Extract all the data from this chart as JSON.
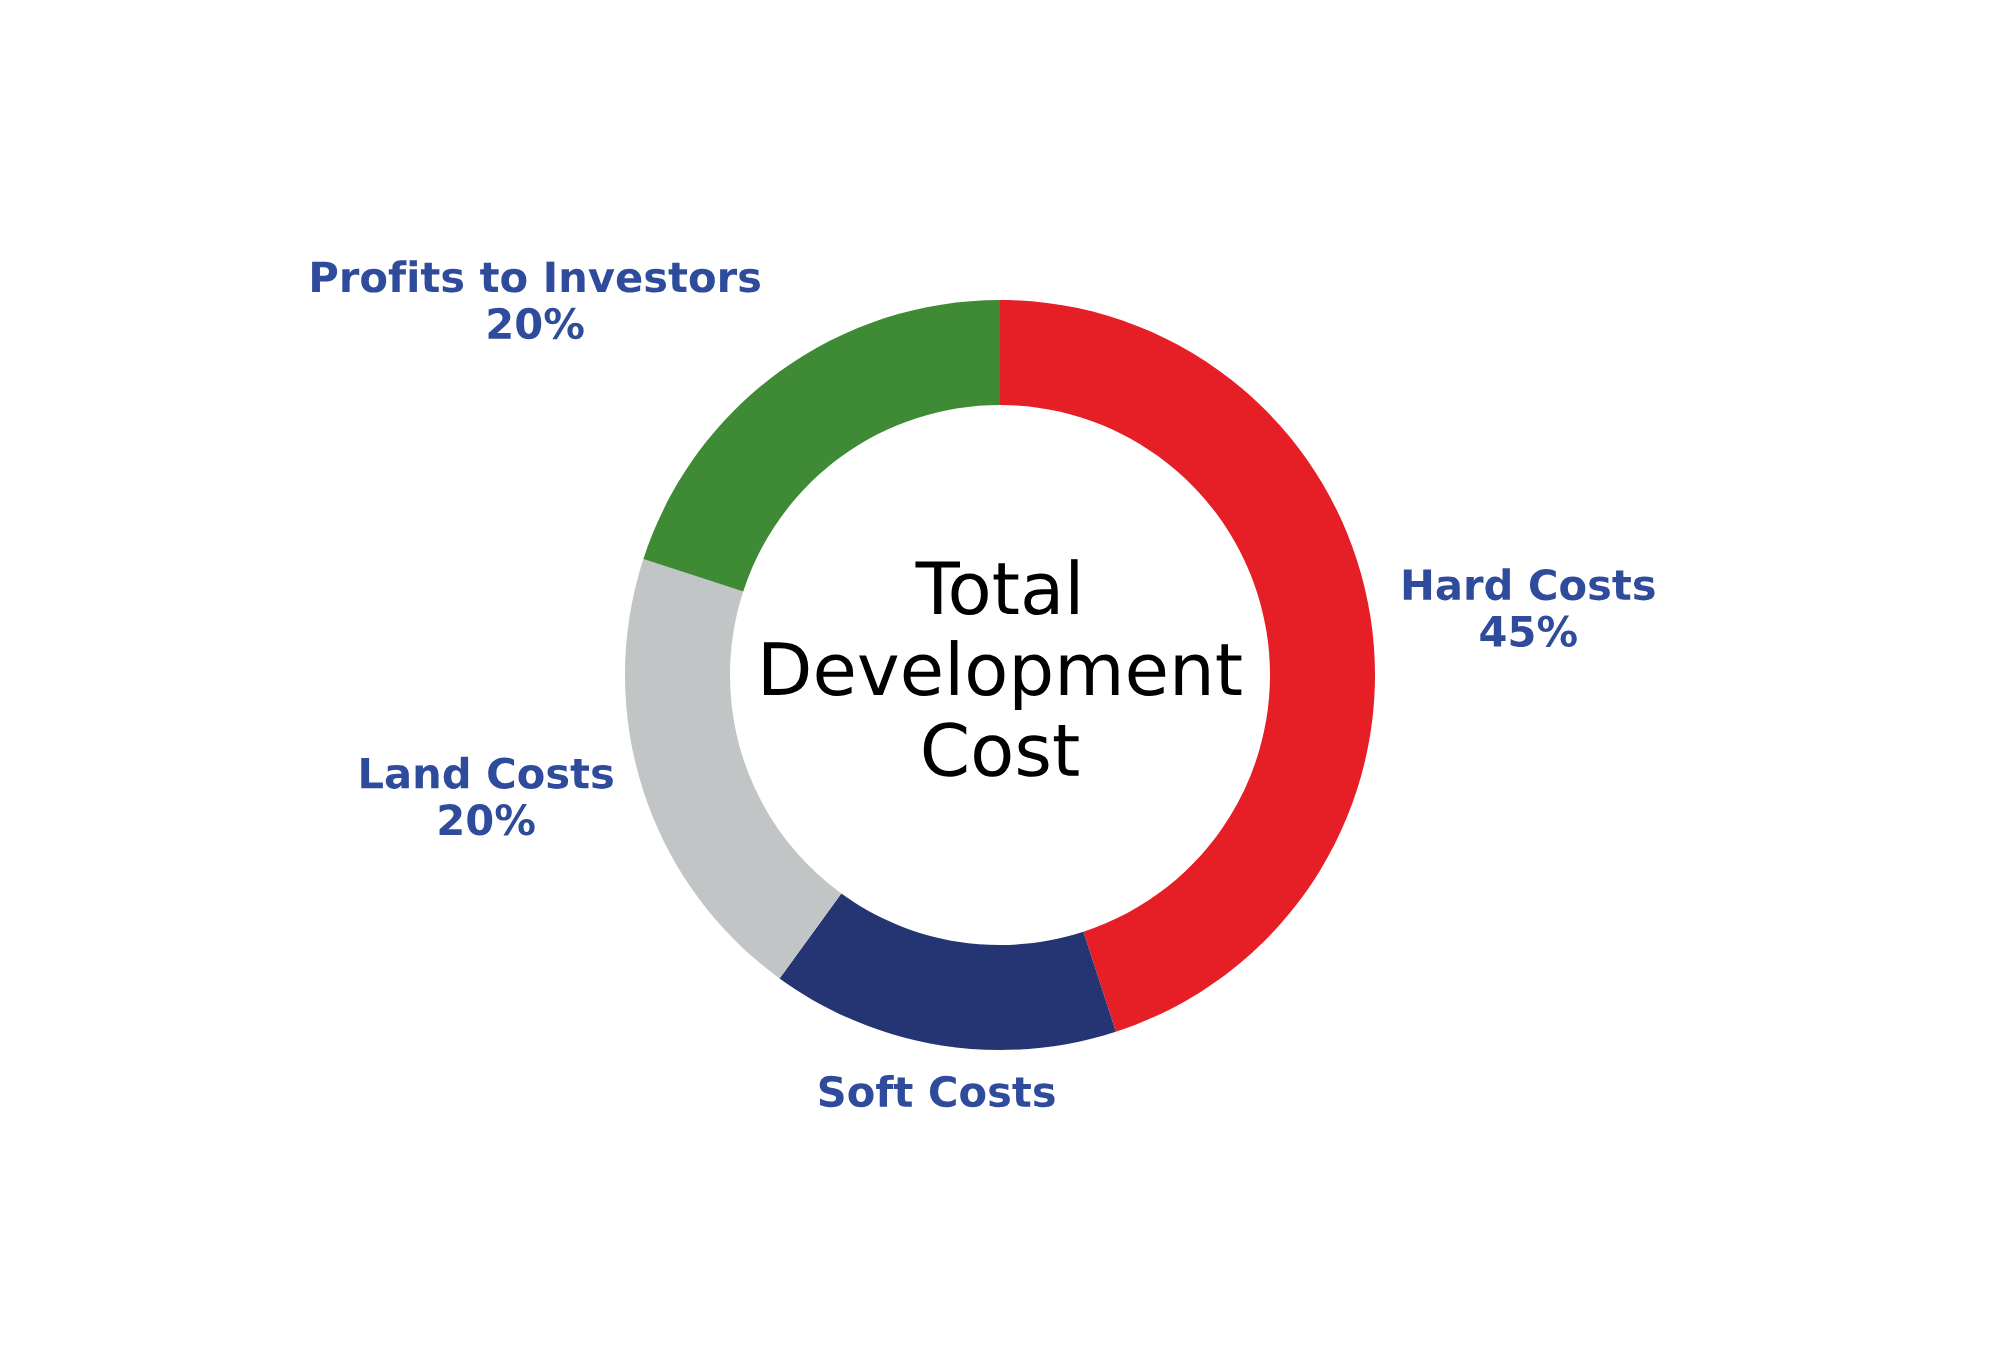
{
  "chart_data": {
    "type": "donut",
    "title": "Total Development Cost",
    "categories": [
      "Hard Costs",
      "Soft Costs",
      "Land Costs",
      "Profits to Investors"
    ],
    "values": [
      45,
      15,
      20,
      20
    ],
    "value_labels": [
      "45%",
      null,
      "20%",
      "20%"
    ],
    "colors": [
      "#e61e26",
      "#253473",
      "#c2c5c6",
      "#3f8a35"
    ]
  }
}
